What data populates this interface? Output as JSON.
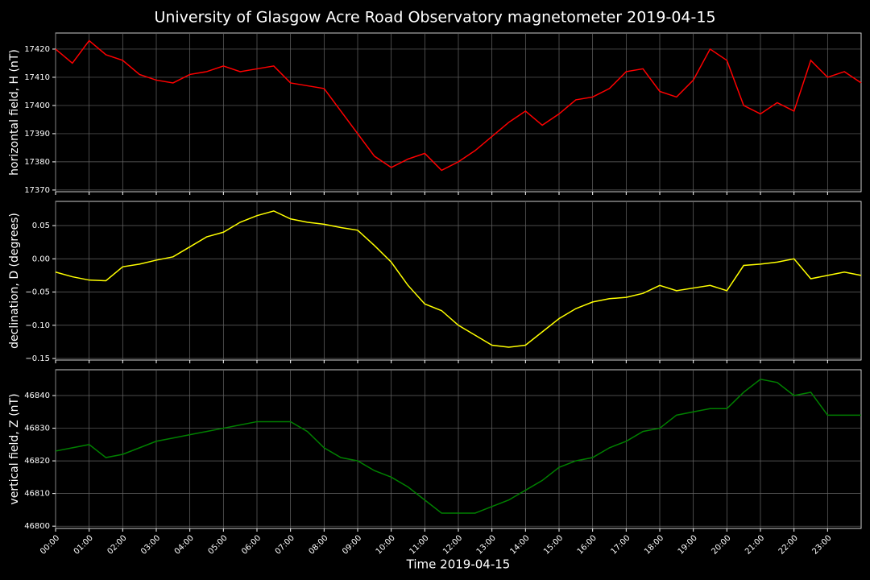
{
  "chart_data": [
    {
      "type": "line",
      "title": "University of Glasgow Acre Road Observatory magnetometer 2019-04-15",
      "ylabel": "horizontal field, H (nT)",
      "grid": true,
      "x": [
        0,
        0.5,
        1,
        1.5,
        2,
        2.5,
        3,
        3.5,
        4,
        4.5,
        5,
        5.5,
        6,
        6.5,
        7,
        7.5,
        8,
        8.5,
        9,
        9.5,
        10,
        10.5,
        11,
        11.5,
        12,
        12.5,
        13,
        13.5,
        14,
        14.5,
        15,
        15.5,
        16,
        16.5,
        17,
        17.5,
        18,
        18.5,
        19,
        19.5,
        20,
        20.5,
        21,
        21.5,
        22,
        22.5,
        23,
        23.5,
        24
      ],
      "xlim": [
        0,
        24
      ],
      "series": [
        {
          "color": "#ff0000",
          "values": [
            17420,
            17415,
            17423,
            17418,
            17416,
            17411,
            17409,
            17408,
            17411,
            17412,
            17414,
            17412,
            17413,
            17414,
            17408,
            17407,
            17406,
            17398,
            17390,
            17382,
            17378,
            17381,
            17383,
            17377,
            17380,
            17384,
            17389,
            17394,
            17398,
            17393,
            17397,
            17402,
            17403,
            17406,
            17412,
            17413,
            17405,
            17403,
            17409,
            17420,
            17416,
            17400,
            17397,
            17401,
            17398,
            17416,
            17410,
            17412,
            17408
          ]
        }
      ],
      "ylim": [
        17369.4,
        17425.7
      ],
      "yticks": [
        17370,
        17380,
        17390,
        17400,
        17410,
        17420
      ]
    },
    {
      "type": "line",
      "ylabel": "declination, D (degrees)",
      "grid": true,
      "x": [
        0,
        0.5,
        1,
        1.5,
        2,
        2.5,
        3,
        3.5,
        4,
        4.5,
        5,
        5.5,
        6,
        6.5,
        7,
        7.5,
        8,
        8.5,
        9,
        9.5,
        10,
        10.5,
        11,
        11.5,
        12,
        12.5,
        13,
        13.5,
        14,
        14.5,
        15,
        15.5,
        16,
        16.5,
        17,
        17.5,
        18,
        18.5,
        19,
        19.5,
        20,
        20.5,
        21,
        21.5,
        22,
        22.5,
        23,
        23.5,
        24
      ],
      "xlim": [
        0,
        24
      ],
      "series": [
        {
          "color": "#ffff00",
          "values": [
            -0.02,
            -0.027,
            -0.032,
            -0.033,
            -0.012,
            -0.008,
            -0.002,
            0.003,
            0.018,
            0.033,
            0.04,
            0.055,
            0.065,
            0.072,
            0.06,
            0.055,
            0.052,
            0.047,
            0.043,
            0.02,
            -0.005,
            -0.04,
            -0.068,
            -0.078,
            -0.1,
            -0.115,
            -0.13,
            -0.133,
            -0.13,
            -0.11,
            -0.09,
            -0.075,
            -0.065,
            -0.06,
            -0.058,
            -0.052,
            -0.04,
            -0.048,
            -0.044,
            -0.04,
            -0.048,
            -0.01,
            -0.008,
            -0.005,
            0.0,
            -0.03,
            -0.025,
            -0.02,
            -0.025
          ]
        }
      ],
      "ylim": [
        -0.1524,
        0.0864
      ],
      "yticks": [
        {
          "value": -0.15,
          "label": "−0.15"
        },
        {
          "value": -0.1,
          "label": "−0.10"
        },
        {
          "value": -0.05,
          "label": "−0.05"
        },
        {
          "value": 0,
          "label": "0.00"
        },
        0.05
      ]
    },
    {
      "type": "line",
      "ylabel": "vertical field, Z (nT)",
      "xlabel": "Time 2019-04-15",
      "grid": true,
      "x": [
        0,
        0.5,
        1,
        1.5,
        2,
        2.5,
        3,
        3.5,
        4,
        4.5,
        5,
        5.5,
        6,
        6.5,
        7,
        7.5,
        8,
        8.5,
        9,
        9.5,
        10,
        10.5,
        11,
        11.5,
        12,
        12.5,
        13,
        13.5,
        14,
        14.5,
        15,
        15.5,
        16,
        16.5,
        17,
        17.5,
        18,
        18.5,
        19,
        19.5,
        20,
        20.5,
        21,
        21.5,
        22,
        22.5,
        23,
        23.5,
        24
      ],
      "xlim": [
        0,
        24
      ],
      "xticks": [
        {
          "value": 0,
          "label": "00:00"
        },
        {
          "value": 1,
          "label": "01:00"
        },
        {
          "value": 2,
          "label": "02:00"
        },
        {
          "value": 3,
          "label": "03:00"
        },
        {
          "value": 4,
          "label": "04:00"
        },
        {
          "value": 5,
          "label": "05:00"
        },
        {
          "value": 6,
          "label": "06:00"
        },
        {
          "value": 7,
          "label": "07:00"
        },
        {
          "value": 8,
          "label": "08:00"
        },
        {
          "value": 9,
          "label": "09:00"
        },
        {
          "value": 10,
          "label": "10:00"
        },
        {
          "value": 11,
          "label": "11:00"
        },
        {
          "value": 12,
          "label": "12:00"
        },
        {
          "value": 13,
          "label": "13:00"
        },
        {
          "value": 14,
          "label": "14:00"
        },
        {
          "value": 15,
          "label": "15:00"
        },
        {
          "value": 16,
          "label": "16:00"
        },
        {
          "value": 17,
          "label": "17:00"
        },
        {
          "value": 18,
          "label": "18:00"
        },
        {
          "value": 19,
          "label": "19:00"
        },
        {
          "value": 20,
          "label": "20:00"
        },
        {
          "value": 21,
          "label": "21:00"
        },
        {
          "value": 22,
          "label": "22:00"
        },
        {
          "value": 23,
          "label": "23:00"
        }
      ],
      "series": [
        {
          "color": "#008000",
          "values": [
            46823,
            46824,
            46825,
            46821,
            46822,
            46824,
            46826,
            46827,
            46828,
            46829,
            46830,
            46831,
            46832,
            46832,
            46832,
            46829,
            46824,
            46821,
            46820,
            46817,
            46815,
            46812,
            46808,
            46804,
            46804,
            46804,
            46806,
            46808,
            46811,
            46814,
            46818,
            46820,
            46821,
            46824,
            46826,
            46829,
            46830,
            46834,
            46835,
            46836,
            46836,
            46841,
            46845,
            46844,
            46840,
            46841,
            46834,
            46834,
            46834
          ]
        }
      ],
      "ylim": [
        46799.3,
        46847.9
      ],
      "yticks": [
        46800,
        46810,
        46820,
        46830,
        46840
      ]
    }
  ]
}
